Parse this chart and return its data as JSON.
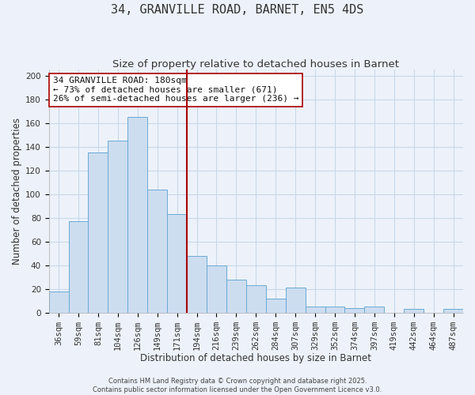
{
  "title": "34, GRANVILLE ROAD, BARNET, EN5 4DS",
  "subtitle": "Size of property relative to detached houses in Barnet",
  "xlabel": "Distribution of detached houses by size in Barnet",
  "ylabel": "Number of detached properties",
  "categories": [
    "36sqm",
    "59sqm",
    "81sqm",
    "104sqm",
    "126sqm",
    "149sqm",
    "171sqm",
    "194sqm",
    "216sqm",
    "239sqm",
    "262sqm",
    "284sqm",
    "307sqm",
    "329sqm",
    "352sqm",
    "374sqm",
    "397sqm",
    "419sqm",
    "442sqm",
    "464sqm",
    "487sqm"
  ],
  "values": [
    18,
    77,
    135,
    145,
    165,
    104,
    83,
    48,
    40,
    28,
    23,
    12,
    21,
    5,
    5,
    4,
    5,
    0,
    3,
    0,
    3
  ],
  "bar_color": "#ccddf0",
  "bar_edge_color": "#6aaad4",
  "reference_line_index": 7,
  "reference_line_color": "#aa0000",
  "annotation_line1": "34 GRANVILLE ROAD: 180sqm",
  "annotation_line2": "← 73% of detached houses are smaller (671)",
  "annotation_line3": "26% of semi-detached houses are larger (236) →",
  "annotation_box_color": "#ffffff",
  "annotation_box_edge_color": "#aa0000",
  "ylim": [
    0,
    205
  ],
  "yticks": [
    0,
    20,
    40,
    60,
    80,
    100,
    120,
    140,
    160,
    180,
    200
  ],
  "grid_color": "#c8d8e8",
  "background_color": "#edf2fa",
  "plot_bg_color": "#edf2fa",
  "footer_line1": "Contains HM Land Registry data © Crown copyright and database right 2025.",
  "footer_line2": "Contains public sector information licensed under the Open Government Licence v3.0.",
  "title_fontsize": 11,
  "subtitle_fontsize": 9.5,
  "axis_label_fontsize": 8.5,
  "tick_fontsize": 7.5,
  "annotation_fontsize": 8,
  "footer_fontsize": 6
}
